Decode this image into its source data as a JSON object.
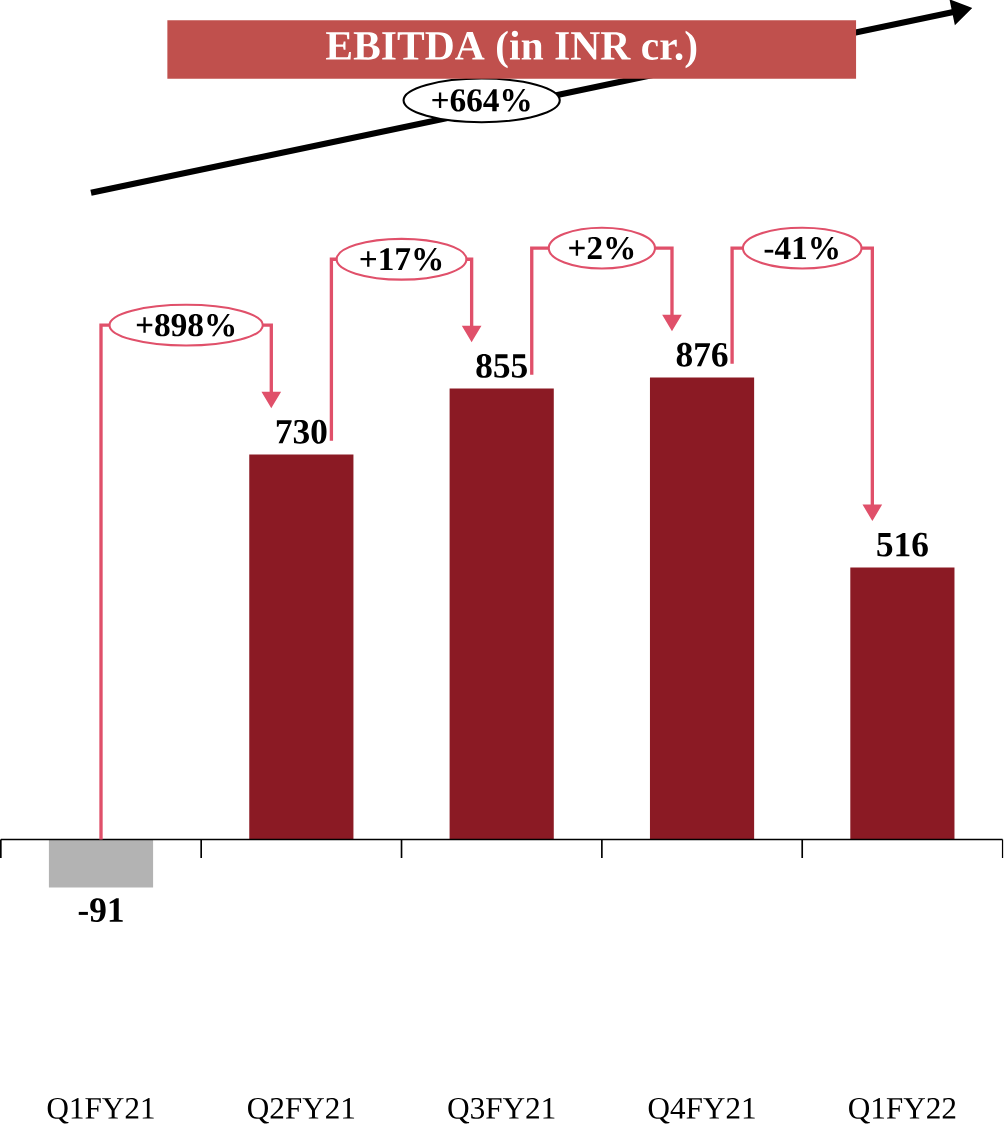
{
  "chart_data": {
    "type": "bar",
    "title": "EBITDA (in INR cr.)",
    "categories": [
      "Q1FY21",
      "Q2FY21",
      "Q3FY21",
      "Q4FY21",
      "Q1FY22"
    ],
    "values": [
      -91,
      730,
      855,
      876,
      516
    ],
    "colors": [
      "#b3b3b3",
      "#8b1a24",
      "#8b1a24",
      "#8b1a24",
      "#8b1a24"
    ],
    "data_labels": true,
    "annotations": [
      "+664%",
      "+898%",
      "+17%",
      "+2%",
      "-41%"
    ]
  }
}
